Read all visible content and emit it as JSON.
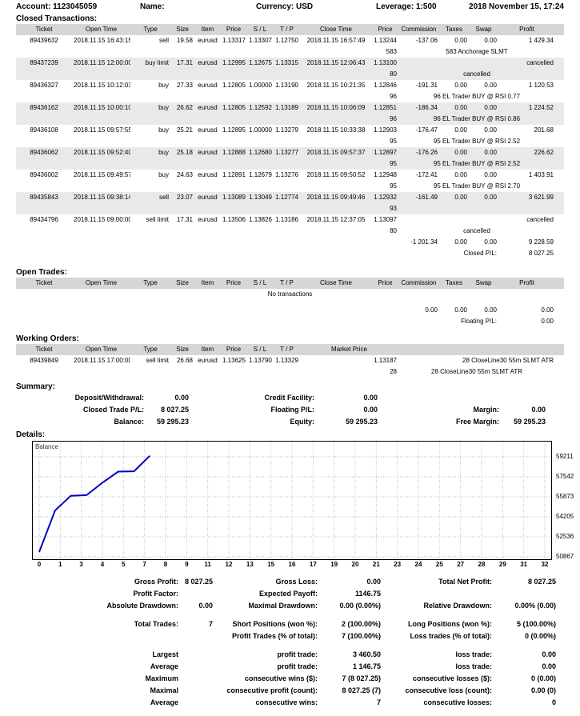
{
  "header": {
    "account_label": "Account:",
    "account": "1123045059",
    "name_label": "Name:",
    "currency_label": "Currency:",
    "currency": "USD",
    "leverage_label": "Leverage:",
    "leverage": "1:500",
    "datetime": "2018 November 15, 17:24"
  },
  "closed": {
    "title": "Closed Transactions:",
    "columns": [
      "Ticket",
      "Open Time",
      "Type",
      "Size",
      "Item",
      "Price",
      "S / L",
      "T / P",
      "Close Time",
      "Price",
      "Commission",
      "Taxes",
      "Swap",
      "Profit"
    ],
    "rows": [
      {
        "ticket": "89439632",
        "open_time": "2018.11.15 16:43:15",
        "type": "sell",
        "size": "19.58",
        "item": "eurusd",
        "price": "1.13317",
        "sl": "1.13307",
        "tp": "1.12750",
        "close_time": "2018.11.15 16:57:49",
        "close_price": "1.13244",
        "commission": "-137.06",
        "taxes": "0.00",
        "swap": "0.00",
        "profit": "1 429.34",
        "magic": "583",
        "comment": "583 Anchorage SLMT",
        "shaded": false
      },
      {
        "ticket": "89437239",
        "open_time": "2018.11.15 12:00:00",
        "type": "buy limit",
        "size": "17.31",
        "item": "eurusd",
        "price": "1.12995",
        "sl": "1.12675",
        "tp": "1.13315",
        "close_time": "2018.11.15 12:06:43",
        "close_price": "1.13100",
        "commission": "",
        "taxes": "",
        "swap": "",
        "profit": "cancelled",
        "magic": "80",
        "comment": "cancelled",
        "shaded": true
      },
      {
        "ticket": "89436327",
        "open_time": "2018.11.15 10:12:03",
        "type": "buy",
        "size": "27.33",
        "item": "eurusd",
        "price": "1.12805",
        "sl": "1.00000",
        "tp": "1.13190",
        "close_time": "2018.11.15 10:21:35",
        "close_price": "1.12846",
        "commission": "-191.31",
        "taxes": "0.00",
        "swap": "0.00",
        "profit": "1 120.53",
        "magic": "96",
        "comment": "96 EL Trader BUY @ RSI 0.77",
        "shaded": false
      },
      {
        "ticket": "89436162",
        "open_time": "2018.11.15 10:00:10",
        "type": "buy",
        "size": "26.62",
        "item": "eurusd",
        "price": "1.12805",
        "sl": "1.12592",
        "tp": "1.13189",
        "close_time": "2018.11.15 10:06:09",
        "close_price": "1.12851",
        "commission": "-186.34",
        "taxes": "0.00",
        "swap": "0.00",
        "profit": "1 224.52",
        "magic": "96",
        "comment": "96 EL Trader BUY @ RSI 0.86",
        "shaded": true
      },
      {
        "ticket": "89436108",
        "open_time": "2018.11.15 09:57:55",
        "type": "buy",
        "size": "25.21",
        "item": "eurusd",
        "price": "1.12895",
        "sl": "1.00000",
        "tp": "1.13279",
        "close_time": "2018.11.15 10:33:38",
        "close_price": "1.12903",
        "commission": "-176.47",
        "taxes": "0.00",
        "swap": "0.00",
        "profit": "201.68",
        "magic": "95",
        "comment": "95 EL Trader BUY @ RSI 2.52",
        "shaded": false
      },
      {
        "ticket": "89436062",
        "open_time": "2018.11.15 09:52:40",
        "type": "buy",
        "size": "25.18",
        "item": "eurusd",
        "price": "1.12888",
        "sl": "1.12680",
        "tp": "1.13277",
        "close_time": "2018.11.15 09:57:37",
        "close_price": "1.12897",
        "commission": "-176.26",
        "taxes": "0.00",
        "swap": "0.00",
        "profit": "226.62",
        "magic": "95",
        "comment": "95 EL Trader BUY @ RSI 2.52",
        "shaded": true
      },
      {
        "ticket": "89436002",
        "open_time": "2018.11.15 09:49:57",
        "type": "buy",
        "size": "24.63",
        "item": "eurusd",
        "price": "1.12891",
        "sl": "1.12679",
        "tp": "1.13276",
        "close_time": "2018.11.15 09:50:52",
        "close_price": "1.12948",
        "commission": "-172.41",
        "taxes": "0.00",
        "swap": "0.00",
        "profit": "1 403.91",
        "magic": "95",
        "comment": "95 EL Trader BUY @ RSI 2.70",
        "shaded": false
      },
      {
        "ticket": "89435843",
        "open_time": "2018.11.15 09:38:14",
        "type": "sell",
        "size": "23.07",
        "item": "eurusd",
        "price": "1.13089",
        "sl": "1.13049",
        "tp": "1.12774",
        "close_time": "2018.11.15 09:49:46",
        "close_price": "1.12932",
        "commission": "-161.49",
        "taxes": "0.00",
        "swap": "0.00",
        "profit": "3 621.99",
        "magic": "93",
        "comment": "",
        "shaded": true
      },
      {
        "ticket": "89434796",
        "open_time": "2018.11.15 09:00:00",
        "type": "sell limit",
        "size": "17.31",
        "item": "eurusd",
        "price": "1.13506",
        "sl": "1.13826",
        "tp": "1.13186",
        "close_time": "2018.11.15 12:37:05",
        "close_price": "1.13097",
        "commission": "",
        "taxes": "",
        "swap": "",
        "profit": "cancelled",
        "magic": "80",
        "comment": "cancelled",
        "shaded": false
      }
    ],
    "totals": {
      "commission": "-1 201.34",
      "taxes": "0.00",
      "swap": "0.00",
      "profit": "9 228.59"
    },
    "closed_pl_label": "Closed P/L:",
    "closed_pl": "8 027.25"
  },
  "open_trades": {
    "title": "Open Trades:",
    "no_transactions": "No transactions",
    "totals": {
      "commission": "0.00",
      "taxes": "0.00",
      "swap": "0.00",
      "profit": "0.00"
    },
    "floating_pl_label": "Floating P/L:",
    "floating_pl": "0.00"
  },
  "working_orders": {
    "title": "Working Orders:",
    "columns": [
      "Ticket",
      "Open Time",
      "Type",
      "Size",
      "Item",
      "Price",
      "S / L",
      "T / P",
      "Market Price"
    ],
    "row": {
      "ticket": "89439849",
      "open_time": "2018.11.15 17:00:00",
      "type": "sell limit",
      "size": "26.68",
      "item": "eurusd",
      "price": "1.13625",
      "sl": "1.13790",
      "tp": "1.13329",
      "market_price": "1.13187",
      "comment": "28 CloseLine30 55m SLMT ATR",
      "magic": "28",
      "sub_comment": "28 CloseLine30 55m SLMT ATR"
    }
  },
  "summary": {
    "title": "Summary:",
    "deposit_label": "Deposit/Withdrawal:",
    "deposit": "0.00",
    "credit_label": "Credit Facility:",
    "credit": "0.00",
    "closed_label": "Closed Trade P/L:",
    "closed": "8 027.25",
    "floating_label": "Floating P/L:",
    "floating": "0.00",
    "margin_label": "Margin:",
    "margin": "0.00",
    "balance_label": "Balance:",
    "balance": "59 295.23",
    "equity_label": "Equity:",
    "equity": "59 295.23",
    "free_margin_label": "Free Margin:",
    "free_margin": "59 295.23"
  },
  "details": {
    "title": "Details:"
  },
  "chart_data": {
    "type": "line",
    "title": "",
    "series": [
      {
        "name": "Balance",
        "x": [
          0,
          1,
          2,
          3,
          4,
          5,
          6,
          7
        ],
        "values": [
          51267.98,
          54728.48,
          55959.98,
          56010.34,
          57048.52,
          57977.74,
          58002.95,
          59295.23
        ]
      }
    ],
    "x_tick_labels": [
      "0",
      "1",
      "3",
      "4",
      "5",
      "7",
      "8",
      "9",
      "11",
      "12",
      "13",
      "15",
      "16",
      "17",
      "19",
      "20",
      "21",
      "23",
      "24",
      "25",
      "27",
      "28",
      "29",
      "31",
      "32"
    ],
    "y_tick_labels": [
      "50867",
      "52536",
      "54205",
      "55873",
      "57542",
      "59211"
    ],
    "y_anchor_bottom": 50867,
    "y_anchor_top": 59211,
    "xlabel": "",
    "ylabel": "",
    "grid": "dotted",
    "legend_position": "top-left-inside",
    "line_color": "#0000c8"
  },
  "stats": {
    "rows": [
      {
        "cells": [
          "Gross Profit:",
          "8 027.25",
          "Gross Loss:",
          "0.00",
          "Total Net Profit:",
          "8 027.25"
        ]
      },
      {
        "cells": [
          "Profit Factor:",
          "",
          "Expected Payoff:",
          "1146.75",
          "",
          ""
        ]
      },
      {
        "cells": [
          "Absolute Drawdown:",
          "0.00",
          "Maximal Drawdown:",
          "0.00 (0.00%)",
          "Relative Drawdown:",
          "0.00% (0.00)"
        ]
      },
      {
        "spacer": true
      },
      {
        "cells": [
          "Total Trades:",
          "7",
          "Short Positions (won %):",
          "2 (100.00%)",
          "Long Positions (won %):",
          "5 (100.00%)"
        ]
      },
      {
        "cells": [
          "",
          "",
          "Profit Trades (% of total):",
          "7 (100.00%)",
          "Loss trades (% of total):",
          "0 (0.00%)"
        ]
      },
      {
        "spacer": true
      },
      {
        "cells": [
          "Largest",
          "",
          "profit trade:",
          "3 460.50",
          "loss trade:",
          "0.00"
        ],
        "pad1": true
      },
      {
        "cells": [
          "Average",
          "",
          "profit trade:",
          "1 146.75",
          "loss trade:",
          "0.00"
        ],
        "pad1": true
      },
      {
        "cells": [
          "Maximum",
          "",
          "consecutive wins ($):",
          "7 (8 027.25)",
          "consecutive losses ($):",
          "0 (0.00)"
        ],
        "pad1": true
      },
      {
        "cells": [
          "Maximal",
          "",
          "consecutive profit (count):",
          "8 027.25 (7)",
          "consecutive loss (count):",
          "0.00 (0)"
        ],
        "pad1": true
      },
      {
        "cells": [
          "Average",
          "",
          "consecutive wins:",
          "7",
          "consecutive losses:",
          "0"
        ],
        "pad1": true
      }
    ]
  }
}
